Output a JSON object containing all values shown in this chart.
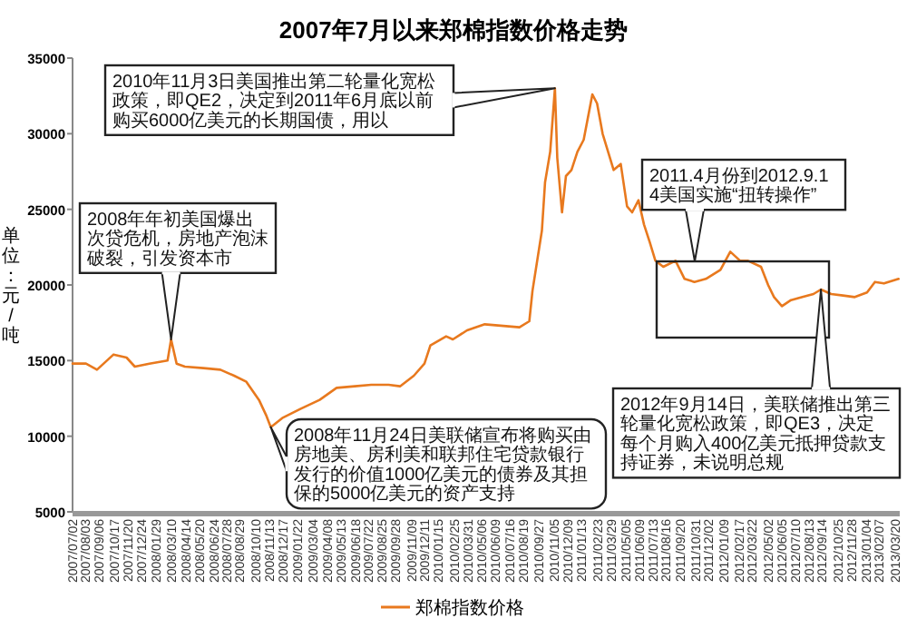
{
  "chart_data": {
    "type": "line",
    "title": "2007年7月以来郑棉指数价格走势",
    "ylabel": "单位：元/吨",
    "legend": "bottom",
    "xlim": [
      "2007-07-02",
      "2013-03-31"
    ],
    "ylim": [
      5000,
      35000
    ],
    "yticks": [
      5000,
      10000,
      15000,
      20000,
      25000,
      30000,
      35000
    ],
    "xticks": [
      {
        "value": "2007-07-02",
        "label": "2007/07/02"
      },
      {
        "value": "2007-08-03",
        "label": "2007/08/03"
      },
      {
        "value": "2007-09-06",
        "label": "2007/09/06"
      },
      {
        "value": "2007-10-17",
        "label": "2007/10/17"
      },
      {
        "value": "2007-11-20",
        "label": "2007/11/20"
      },
      {
        "value": "2007-12-24",
        "label": "2007/12/24"
      },
      {
        "value": "2008-01-29",
        "label": "2008/01/29"
      },
      {
        "value": "2008-03-10",
        "label": "2008/03/10"
      },
      {
        "value": "2008-04-14",
        "label": "2008/04/14"
      },
      {
        "value": "2008-05-20",
        "label": "2008/05/20"
      },
      {
        "value": "2008-06-24",
        "label": "2008/06/24"
      },
      {
        "value": "2008-07-28",
        "label": "2008/07/28"
      },
      {
        "value": "2008-08-29",
        "label": "2008/08/29"
      },
      {
        "value": "2008-10-10",
        "label": "2008/10/10"
      },
      {
        "value": "2008-11-13",
        "label": "2008/11/13"
      },
      {
        "value": "2008-12-17",
        "label": "2008/12/17"
      },
      {
        "value": "2009-01-22",
        "label": "2009/01/22"
      },
      {
        "value": "2009-03-04",
        "label": "2009/03/04"
      },
      {
        "value": "2009-04-08",
        "label": "2009/04/08"
      },
      {
        "value": "2009-05-13",
        "label": "2009/05/13"
      },
      {
        "value": "2009-06-18",
        "label": "2009/06/18"
      },
      {
        "value": "2009-07-22",
        "label": "2009/07/22"
      },
      {
        "value": "2009-08-25",
        "label": "2009/08/25"
      },
      {
        "value": "2009-09-28",
        "label": "2009/09/28"
      },
      {
        "value": "2009-11-09",
        "label": "2009/11/09"
      },
      {
        "value": "2009-12-11",
        "label": "2009/12/11"
      },
      {
        "value": "2010-01-15",
        "label": "2010/01/15"
      },
      {
        "value": "2010-02-25",
        "label": "2010/02/25"
      },
      {
        "value": "2010-03-31",
        "label": "2010/03/31"
      },
      {
        "value": "2010-05-06",
        "label": "2010/05/06"
      },
      {
        "value": "2010-06-09",
        "label": "2010/06/09"
      },
      {
        "value": "2010-07-16",
        "label": "2010/07/16"
      },
      {
        "value": "2010-08-19",
        "label": "2010/08/19"
      },
      {
        "value": "2010-09-27",
        "label": "2010/09/27"
      },
      {
        "value": "2010-11-05",
        "label": "2010/11/05"
      },
      {
        "value": "2010-12-09",
        "label": "2010/12/09"
      },
      {
        "value": "2011-01-13",
        "label": "2011/01/13"
      },
      {
        "value": "2011-02-23",
        "label": "2011/02/23"
      },
      {
        "value": "2011-03-29",
        "label": "2011/03/29"
      },
      {
        "value": "2011-05-05",
        "label": "2011/05/05"
      },
      {
        "value": "2011-06-09",
        "label": "2011/06/09"
      },
      {
        "value": "2011-07-13",
        "label": "2011/07/13"
      },
      {
        "value": "2011-08-16",
        "label": "2011/08/16"
      },
      {
        "value": "2011-09-20",
        "label": "2011/09/20"
      },
      {
        "value": "2011-10-31",
        "label": "2011/10/31"
      },
      {
        "value": "2011-12-02",
        "label": "2011/12/02"
      },
      {
        "value": "2012-01-09",
        "label": "2012/01/09"
      },
      {
        "value": "2012-02-17",
        "label": "2012/02/17"
      },
      {
        "value": "2012-03-22",
        "label": "2012/03/22"
      },
      {
        "value": "2012-05-02",
        "label": "2012/05/02"
      },
      {
        "value": "2012-06-05",
        "label": "2012/06/05"
      },
      {
        "value": "2012-07-10",
        "label": "2012/07/10"
      },
      {
        "value": "2012-08-13",
        "label": "2012/08/13"
      },
      {
        "value": "2012-09-14",
        "label": "2012/09/14"
      },
      {
        "value": "2012-10-25",
        "label": "2012/10/25"
      },
      {
        "value": "2012-11-28",
        "label": "2012/11/28"
      },
      {
        "value": "2013-01-04",
        "label": "2013/01/04"
      },
      {
        "value": "2013-02-07",
        "label": "2013/02/07"
      },
      {
        "value": "2013-03-20",
        "label": "2013/03/20"
      }
    ],
    "x": [
      "2007-07-02",
      "2007-08-05",
      "2007-09-02",
      "2007-10-14",
      "2007-11-16",
      "2007-12-07",
      "2008-01-13",
      "2008-02-28",
      "2008-03-08",
      "2008-03-22",
      "2008-04-12",
      "2008-05-29",
      "2008-07-11",
      "2008-08-15",
      "2008-09-15",
      "2008-10-17",
      "2008-11-04",
      "2008-11-16",
      "2008-12-15",
      "2009-01-30",
      "2009-03-20",
      "2009-05-02",
      "2009-06-17",
      "2009-07-29",
      "2009-09-11",
      "2009-10-10",
      "2009-11-14",
      "2009-12-11",
      "2009-12-26",
      "2010-02-04",
      "2010-02-21",
      "2010-03-29",
      "2010-05-13",
      "2010-08-09",
      "2010-09-03",
      "2010-09-11",
      "2010-10-05",
      "2010-10-13",
      "2010-10-26",
      "2010-11-07",
      "2010-11-13",
      "2010-11-25",
      "2010-12-05",
      "2010-12-19",
      "2011-01-03",
      "2011-01-19",
      "2011-02-10",
      "2011-02-22",
      "2011-03-08",
      "2011-03-22",
      "2011-04-05",
      "2011-04-23",
      "2011-05-09",
      "2011-05-22",
      "2011-06-07",
      "2011-06-21",
      "2011-07-06",
      "2011-07-20",
      "2011-08-09",
      "2011-09-09",
      "2011-10-02",
      "2011-10-27",
      "2011-11-25",
      "2012-01-01",
      "2012-01-26",
      "2012-02-20",
      "2012-03-11",
      "2012-04-13",
      "2012-05-01",
      "2012-05-16",
      "2012-06-05",
      "2012-06-28",
      "2012-07-27",
      "2012-08-24",
      "2012-09-12",
      "2012-10-08",
      "2012-11-07",
      "2012-12-07",
      "2013-01-07",
      "2013-01-27",
      "2013-02-19",
      "2013-03-28"
    ],
    "series": [
      {
        "name": "郑棉指数价格",
        "color": "#e8791e",
        "values": [
          14800,
          14800,
          14400,
          15400,
          15200,
          14600,
          14800,
          15000,
          16400,
          14800,
          14600,
          14500,
          14400,
          14000,
          13600,
          12400,
          11400,
          10600,
          11200,
          11800,
          12400,
          13200,
          13300,
          13400,
          13400,
          13300,
          14000,
          14800,
          16000,
          16600,
          16400,
          17000,
          17400,
          17200,
          17600,
          19600,
          23600,
          26800,
          28800,
          33000,
          28400,
          24800,
          27200,
          27600,
          28800,
          29600,
          32600,
          32000,
          30000,
          28800,
          27600,
          28000,
          25200,
          24800,
          25600,
          24000,
          22800,
          21600,
          21200,
          21600,
          20400,
          20200,
          20400,
          21000,
          22200,
          21600,
          21600,
          21200,
          20000,
          19200,
          18600,
          19000,
          19200,
          19400,
          19700,
          19400,
          19300,
          19200,
          19500,
          20200,
          20100,
          20400
        ]
      }
    ],
    "annotations": [
      {
        "text": "2008年年初美国爆出次贷危机，房地产泡沫破裂，引发资本市",
        "x": "2008-03-08",
        "y": 16400
      },
      {
        "text": "2010年11月3日美国推出第二轮量化宽松政策，即QE2，决定到2011年6月底以前购买6000亿美元的长期国债，用以",
        "x": "2010-11-07",
        "y": 33000
      },
      {
        "text": "2008年11月24日美联储宣布将购买由房地美、房利美和联邦住宅贷款银行发行的价值1000亿美元的债券及其担保的5000亿美元的资产支持",
        "x": "2008-11-16",
        "y": 10600
      },
      "2011.4月份到2012.9.14美国实施“扭转操作”",
      {
        "text": "2012年9月14日，美联储推出第三轮量化宽松政策，即QE3，决定每个月购入400亿美元抵押贷款支持证券，未说明总规",
        "x": "2012-09-12",
        "y": 19700
      }
    ]
  }
}
